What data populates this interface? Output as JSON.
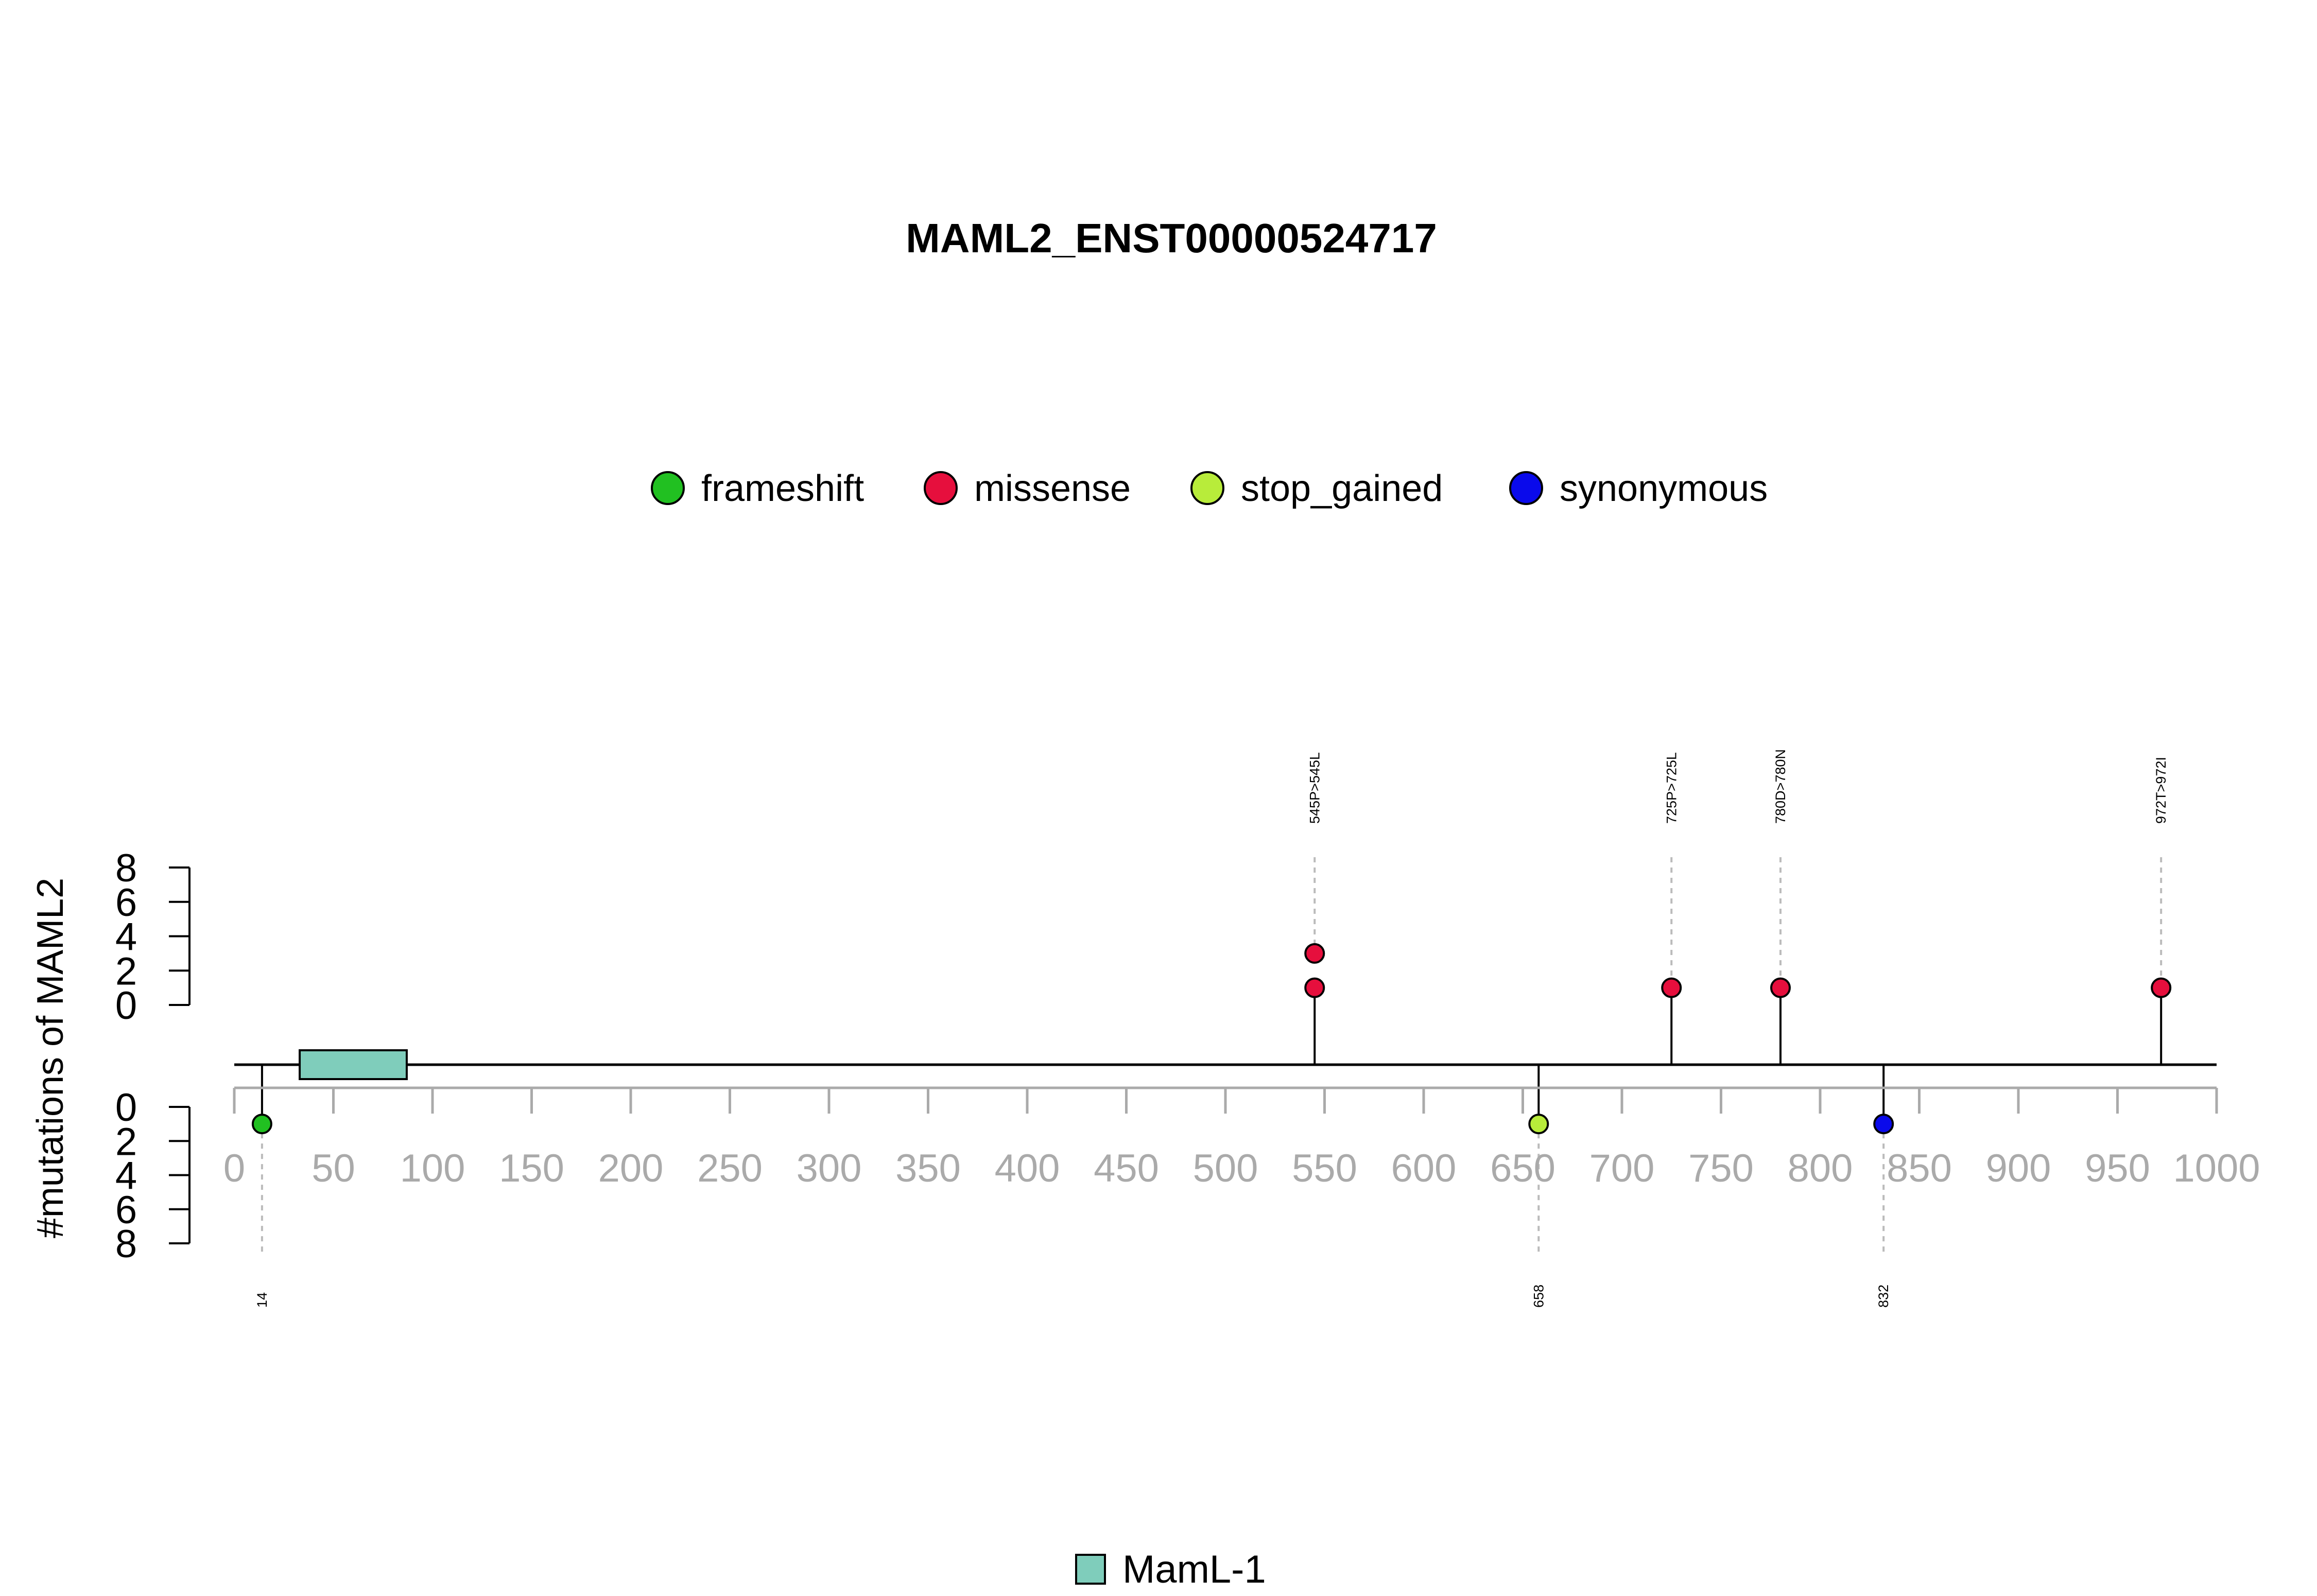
{
  "chart_data": {
    "type": "lollipop",
    "title": "MAML2_ENST00000524717",
    "ylabel": "#mutations of MAML2",
    "xlim": [
      0,
      1000
    ],
    "x_ticks": [
      0,
      50,
      100,
      150,
      200,
      250,
      300,
      350,
      400,
      450,
      500,
      550,
      600,
      650,
      700,
      750,
      800,
      850,
      900,
      950,
      1000
    ],
    "y_ticks": [
      0,
      2,
      4,
      6,
      8
    ],
    "ylim": [
      0,
      8
    ],
    "legend": {
      "placement": "top-center",
      "entries": [
        {
          "name": "frameshift",
          "color": "#21c021"
        },
        {
          "name": "missense",
          "color": "#e60f3d"
        },
        {
          "name": "stop_gained",
          "color": "#b8ec3a"
        },
        {
          "name": "synonymous",
          "color": "#0a0aeb"
        }
      ]
    },
    "domains": [
      {
        "name": "MamL-1",
        "start": 33,
        "end": 87,
        "color": "#7fcdbb"
      }
    ],
    "domain_legend": {
      "placement": "bottom-center"
    },
    "mutations_above": [
      {
        "position": 545,
        "label": "545P>545L",
        "type": "missense",
        "count": 2
      },
      {
        "position": 725,
        "label": "725P>725L",
        "type": "missense",
        "count": 1
      },
      {
        "position": 780,
        "label": "780D>780N",
        "type": "missense",
        "count": 1
      },
      {
        "position": 972,
        "label": "972T>972I",
        "type": "missense",
        "count": 1
      }
    ],
    "mutations_below": [
      {
        "position": 14,
        "label": "14",
        "type": "frameshift",
        "count": 1
      },
      {
        "position": 658,
        "label": "658",
        "type": "stop_gained",
        "count": 1
      },
      {
        "position": 832,
        "label": "832",
        "type": "synonymous",
        "count": 1
      }
    ],
    "colors": {
      "axis_tick_label": "#aaaaaa",
      "guide_line": "#bbbbbb",
      "backbone": "#000000"
    }
  }
}
